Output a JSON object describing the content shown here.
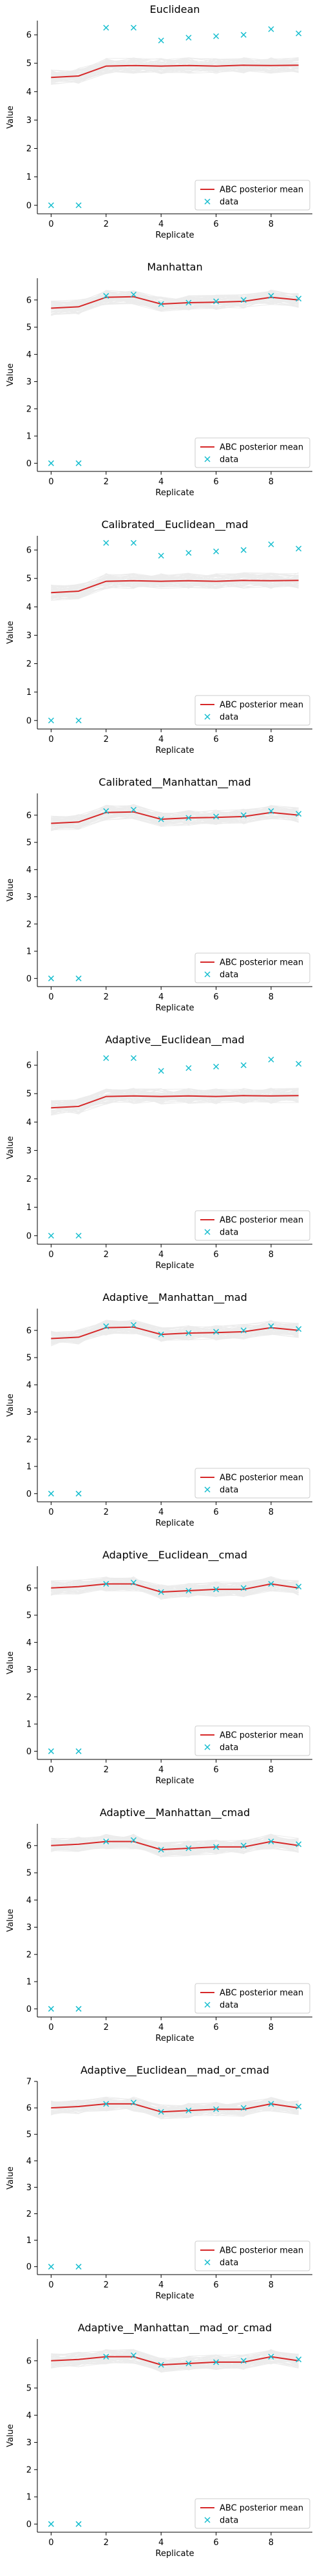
{
  "figure": {
    "xlabel": "Replicate",
    "ylabel": "Value",
    "legend_position": "lower right",
    "legend_labels": [
      "ABC posterior mean",
      "data"
    ],
    "colors": {
      "posterior_mean": "#d62728",
      "data": "#17becf",
      "samples": "#9a9a9a"
    }
  },
  "chart_data": [
    {
      "type": "line",
      "title": "Euclidean",
      "x": [
        0,
        1,
        2,
        3,
        4,
        5,
        6,
        7,
        8,
        9
      ],
      "xticks": [
        0,
        2,
        4,
        6,
        8
      ],
      "ylim": [
        -0.3,
        6.5
      ],
      "yticks": [
        0,
        1,
        2,
        3,
        4,
        5,
        6
      ],
      "series": [
        {
          "name": "ABC posterior mean",
          "values": [
            4.5,
            4.55,
            4.9,
            4.92,
            4.9,
            4.92,
            4.9,
            4.93,
            4.92,
            4.93
          ]
        },
        {
          "name": "data",
          "values": [
            0,
            0,
            6.25,
            6.25,
            5.8,
            5.9,
            5.95,
            6.0,
            6.2,
            6.05
          ]
        }
      ]
    },
    {
      "type": "line",
      "title": "Manhattan",
      "x": [
        0,
        1,
        2,
        3,
        4,
        5,
        6,
        7,
        8,
        9
      ],
      "xticks": [
        0,
        2,
        4,
        6,
        8
      ],
      "ylim": [
        -0.3,
        6.8
      ],
      "yticks": [
        0,
        1,
        2,
        3,
        4,
        5,
        6
      ],
      "series": [
        {
          "name": "ABC posterior mean",
          "values": [
            5.7,
            5.75,
            6.1,
            6.12,
            5.85,
            5.9,
            5.92,
            5.95,
            6.1,
            6.0
          ]
        },
        {
          "name": "data",
          "values": [
            0,
            0,
            6.15,
            6.2,
            5.85,
            5.9,
            5.95,
            6.0,
            6.15,
            6.05
          ]
        }
      ]
    },
    {
      "type": "line",
      "title": "Calibrated__Euclidean__mad",
      "x": [
        0,
        1,
        2,
        3,
        4,
        5,
        6,
        7,
        8,
        9
      ],
      "xticks": [
        0,
        2,
        4,
        6,
        8
      ],
      "ylim": [
        -0.3,
        6.5
      ],
      "yticks": [
        0,
        1,
        2,
        3,
        4,
        5,
        6
      ],
      "series": [
        {
          "name": "ABC posterior mean",
          "values": [
            4.5,
            4.55,
            4.9,
            4.92,
            4.9,
            4.92,
            4.9,
            4.93,
            4.92,
            4.93
          ]
        },
        {
          "name": "data",
          "values": [
            0,
            0,
            6.25,
            6.25,
            5.8,
            5.9,
            5.95,
            6.0,
            6.2,
            6.05
          ]
        }
      ]
    },
    {
      "type": "line",
      "title": "Calibrated__Manhattan__mad",
      "x": [
        0,
        1,
        2,
        3,
        4,
        5,
        6,
        7,
        8,
        9
      ],
      "xticks": [
        0,
        2,
        4,
        6,
        8
      ],
      "ylim": [
        -0.3,
        6.8
      ],
      "yticks": [
        0,
        1,
        2,
        3,
        4,
        5,
        6
      ],
      "series": [
        {
          "name": "ABC posterior mean",
          "values": [
            5.7,
            5.75,
            6.1,
            6.12,
            5.85,
            5.9,
            5.92,
            5.95,
            6.1,
            6.0
          ]
        },
        {
          "name": "data",
          "values": [
            0,
            0,
            6.15,
            6.2,
            5.85,
            5.9,
            5.95,
            6.0,
            6.15,
            6.05
          ]
        }
      ]
    },
    {
      "type": "line",
      "title": "Adaptive__Euclidean__mad",
      "x": [
        0,
        1,
        2,
        3,
        4,
        5,
        6,
        7,
        8,
        9
      ],
      "xticks": [
        0,
        2,
        4,
        6,
        8
      ],
      "ylim": [
        -0.3,
        6.5
      ],
      "yticks": [
        0,
        1,
        2,
        3,
        4,
        5,
        6
      ],
      "series": [
        {
          "name": "ABC posterior mean",
          "values": [
            4.5,
            4.55,
            4.9,
            4.92,
            4.9,
            4.92,
            4.9,
            4.93,
            4.92,
            4.93
          ]
        },
        {
          "name": "data",
          "values": [
            0,
            0,
            6.25,
            6.25,
            5.8,
            5.9,
            5.95,
            6.0,
            6.2,
            6.05
          ]
        }
      ]
    },
    {
      "type": "line",
      "title": "Adaptive__Manhattan__mad",
      "x": [
        0,
        1,
        2,
        3,
        4,
        5,
        6,
        7,
        8,
        9
      ],
      "xticks": [
        0,
        2,
        4,
        6,
        8
      ],
      "ylim": [
        -0.3,
        6.8
      ],
      "yticks": [
        0,
        1,
        2,
        3,
        4,
        5,
        6
      ],
      "series": [
        {
          "name": "ABC posterior mean",
          "values": [
            5.7,
            5.75,
            6.1,
            6.12,
            5.85,
            5.9,
            5.92,
            5.95,
            6.1,
            6.0
          ]
        },
        {
          "name": "data",
          "values": [
            0,
            0,
            6.15,
            6.2,
            5.85,
            5.9,
            5.95,
            6.0,
            6.15,
            6.05
          ]
        }
      ]
    },
    {
      "type": "line",
      "title": "Adaptive__Euclidean__cmad",
      "x": [
        0,
        1,
        2,
        3,
        4,
        5,
        6,
        7,
        8,
        9
      ],
      "xticks": [
        0,
        2,
        4,
        6,
        8
      ],
      "ylim": [
        -0.3,
        6.8
      ],
      "yticks": [
        0,
        1,
        2,
        3,
        4,
        5,
        6
      ],
      "series": [
        {
          "name": "ABC posterior mean",
          "values": [
            6.0,
            6.05,
            6.15,
            6.15,
            5.85,
            5.9,
            5.95,
            5.95,
            6.15,
            6.0
          ]
        },
        {
          "name": "data",
          "values": [
            0,
            0,
            6.15,
            6.2,
            5.85,
            5.9,
            5.95,
            6.0,
            6.15,
            6.05
          ]
        }
      ]
    },
    {
      "type": "line",
      "title": "Adaptive__Manhattan__cmad",
      "x": [
        0,
        1,
        2,
        3,
        4,
        5,
        6,
        7,
        8,
        9
      ],
      "xticks": [
        0,
        2,
        4,
        6,
        8
      ],
      "ylim": [
        -0.3,
        6.8
      ],
      "yticks": [
        0,
        1,
        2,
        3,
        4,
        5,
        6
      ],
      "series": [
        {
          "name": "ABC posterior mean",
          "values": [
            6.0,
            6.05,
            6.15,
            6.15,
            5.85,
            5.9,
            5.95,
            5.95,
            6.15,
            6.0
          ]
        },
        {
          "name": "data",
          "values": [
            0,
            0,
            6.15,
            6.2,
            5.85,
            5.9,
            5.95,
            6.0,
            6.15,
            6.05
          ]
        }
      ]
    },
    {
      "type": "line",
      "title": "Adaptive__Euclidean__mad_or_cmad",
      "x": [
        0,
        1,
        2,
        3,
        4,
        5,
        6,
        7,
        8,
        9
      ],
      "xticks": [
        0,
        2,
        4,
        6,
        8
      ],
      "ylim": [
        -0.3,
        7.0
      ],
      "yticks": [
        0,
        1,
        2,
        3,
        4,
        5,
        6,
        7
      ],
      "series": [
        {
          "name": "ABC posterior mean",
          "values": [
            6.0,
            6.05,
            6.15,
            6.15,
            5.85,
            5.9,
            5.95,
            5.95,
            6.15,
            6.0
          ]
        },
        {
          "name": "data",
          "values": [
            0,
            0,
            6.15,
            6.2,
            5.85,
            5.9,
            5.95,
            6.0,
            6.15,
            6.05
          ]
        }
      ]
    },
    {
      "type": "line",
      "title": "Adaptive__Manhattan__mad_or_cmad",
      "x": [
        0,
        1,
        2,
        3,
        4,
        5,
        6,
        7,
        8,
        9
      ],
      "xticks": [
        0,
        2,
        4,
        6,
        8
      ],
      "ylim": [
        -0.3,
        6.8
      ],
      "yticks": [
        0,
        1,
        2,
        3,
        4,
        5,
        6
      ],
      "series": [
        {
          "name": "ABC posterior mean",
          "values": [
            6.0,
            6.05,
            6.15,
            6.15,
            5.85,
            5.9,
            5.95,
            5.95,
            6.15,
            6.0
          ]
        },
        {
          "name": "data",
          "values": [
            0,
            0,
            6.15,
            6.2,
            5.85,
            5.9,
            5.95,
            6.0,
            6.15,
            6.05
          ]
        }
      ]
    }
  ]
}
